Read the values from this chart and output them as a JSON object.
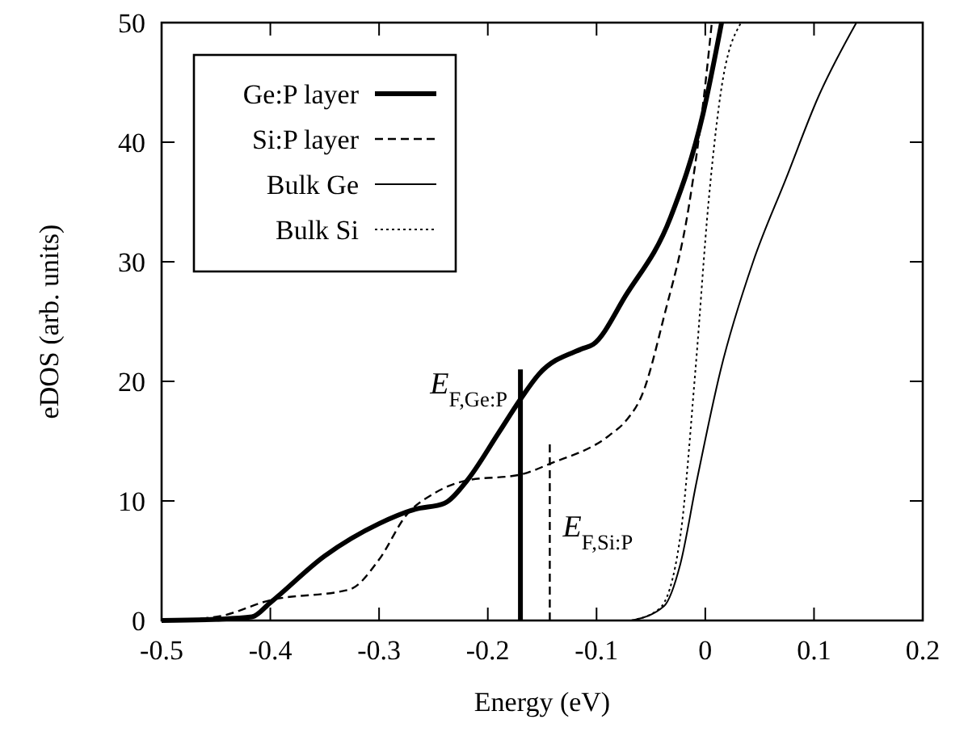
{
  "chart_data": {
    "type": "line",
    "xlabel": "Energy (eV)",
    "ylabel": "eDOS (arb. units)",
    "xlim": [
      -0.5,
      0.2
    ],
    "ylim": [
      0,
      50
    ],
    "xticks": [
      -0.5,
      -0.4,
      -0.3,
      -0.2,
      -0.1,
      0,
      0.1,
      0.2
    ],
    "yticks": [
      0,
      10,
      20,
      30,
      40,
      50
    ],
    "grid": false,
    "legend": "top left",
    "series": [
      {
        "name": "Ge:P layer",
        "color": "#000000",
        "line_style": "solid",
        "x": [
          -0.5,
          -0.45,
          -0.417,
          -0.4,
          -0.35,
          -0.3,
          -0.267,
          -0.24,
          -0.22,
          -0.19,
          -0.17,
          -0.153,
          -0.114,
          -0.103,
          -0.073,
          -0.032,
          -0.002,
          0.015
        ],
        "values": [
          0,
          0.1,
          0.3,
          1.5,
          5.4,
          8.1,
          9.3,
          9.8,
          11.6,
          15.7,
          18.5,
          20.6,
          22.7,
          23.1,
          27.2,
          33.7,
          42.4,
          50
        ]
      },
      {
        "name": "Si:P layer",
        "color": "#000000",
        "line_style": "dashed",
        "x": [
          -0.5,
          -0.45,
          -0.4,
          -0.327,
          -0.3,
          -0.275,
          -0.25,
          -0.22,
          -0.17,
          -0.143,
          -0.088,
          -0.073,
          -0.058,
          -0.038,
          -0.015,
          0,
          0.006
        ],
        "values": [
          0,
          0.3,
          1.7,
          2.6,
          5.1,
          8.8,
          10.6,
          11.7,
          12.2,
          13.1,
          15.5,
          16.7,
          18.9,
          25.4,
          34.7,
          44.8,
          50
        ]
      },
      {
        "name": "Bulk Ge",
        "color": "#000000",
        "line_style": "solid",
        "x": [
          -0.068,
          -0.038,
          -0.023,
          -0.008,
          0.014,
          0.044,
          0.074,
          0.104,
          0.139
        ],
        "values": [
          0,
          1.2,
          4.7,
          11.6,
          20.9,
          30,
          36.9,
          43.8,
          50
        ]
      },
      {
        "name": "Bulk Si",
        "color": "#000000",
        "line_style": "dotted",
        "x": [
          -0.068,
          -0.042,
          -0.023,
          -0.009,
          0.003,
          0.014,
          0.033
        ],
        "values": [
          0,
          1,
          7,
          21,
          35,
          44,
          50
        ]
      },
      {
        "color": "#000000",
        "line_style": "solid",
        "x": [
          -0.17,
          -0.17
        ],
        "values": [
          0,
          21
        ]
      },
      {
        "color": "#000000",
        "line_style": "dashed",
        "x": [
          -0.143,
          -0.143
        ],
        "values": [
          0,
          15
        ]
      }
    ],
    "annotations": [
      {
        "text": "E$_{F,Ge:P}$",
        "x": -0.17,
        "y": 19
      },
      {
        "text": "E$_{F,Si:P}$",
        "x": -0.143,
        "y": 7
      }
    ]
  }
}
